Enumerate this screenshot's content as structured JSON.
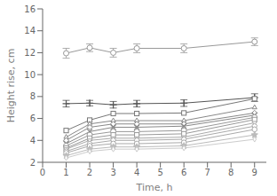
{
  "chart_data": {
    "type": "line",
    "xlabel": "Time, h",
    "ylabel": "Height rise, cm",
    "x": [
      1,
      2,
      3,
      4,
      6,
      9
    ],
    "xlim": [
      0,
      9.5
    ],
    "xticks": [
      0,
      1,
      2,
      3,
      4,
      5,
      6,
      7,
      8,
      9
    ],
    "ylim": [
      2,
      16
    ],
    "yticks": [
      2,
      4,
      6,
      8,
      10,
      12,
      14,
      16
    ],
    "grid": false,
    "series": [
      {
        "color": "#999999",
        "marker": "circle-open",
        "values": [
          11.95,
          12.45,
          12.0,
          12.4,
          12.4,
          13.0
        ],
        "errors": [
          0.45,
          0.35,
          0.4,
          0.4,
          0.4,
          0.35
        ]
      },
      {
        "color": "#555555",
        "marker": "plus",
        "values": [
          7.35,
          7.4,
          7.25,
          7.35,
          7.4,
          7.9
        ],
        "errors": [
          0.3,
          0.25,
          0.3,
          0.3,
          0.3,
          0.35
        ]
      },
      {
        "color": "#777777",
        "marker": "square-open",
        "values": [
          4.9,
          5.85,
          6.45,
          6.45,
          6.5,
          7.8
        ]
      },
      {
        "color": "#888888",
        "marker": "triangle-up-open",
        "values": [
          4.3,
          5.5,
          5.8,
          5.8,
          5.8,
          7.0
        ]
      },
      {
        "color": "#888888",
        "marker": "diamond-open",
        "values": [
          4.0,
          5.2,
          5.5,
          5.5,
          5.5,
          6.5
        ]
      },
      {
        "color": "#888888",
        "marker": "x",
        "values": [
          3.7,
          4.8,
          5.2,
          5.2,
          5.3,
          6.3
        ]
      },
      {
        "color": "#999999",
        "marker": "circle-open",
        "values": [
          3.5,
          4.5,
          4.8,
          4.8,
          4.9,
          6.1
        ]
      },
      {
        "color": "#999999",
        "marker": "square-open",
        "values": [
          3.3,
          4.2,
          4.5,
          4.5,
          4.6,
          5.9
        ]
      },
      {
        "color": "#aaaaaa",
        "marker": "triangle-down-open",
        "values": [
          3.2,
          4.0,
          4.2,
          4.2,
          4.3,
          5.6
        ]
      },
      {
        "color": "#aaaaaa",
        "marker": "pentagon-open",
        "values": [
          3.0,
          3.7,
          4.0,
          4.0,
          4.1,
          5.3
        ]
      },
      {
        "color": "#aaaaaa",
        "marker": "hexagon-open",
        "values": [
          2.85,
          3.5,
          3.7,
          3.7,
          3.8,
          5.0
        ]
      },
      {
        "color": "#bbbbbb",
        "marker": "star",
        "values": [
          2.6,
          3.2,
          3.4,
          3.4,
          3.5,
          4.5
        ]
      },
      {
        "color": "#cccccc",
        "marker": "thin-diamond-open",
        "values": [
          2.4,
          3.0,
          3.2,
          3.2,
          3.3,
          4.1
        ]
      }
    ]
  }
}
